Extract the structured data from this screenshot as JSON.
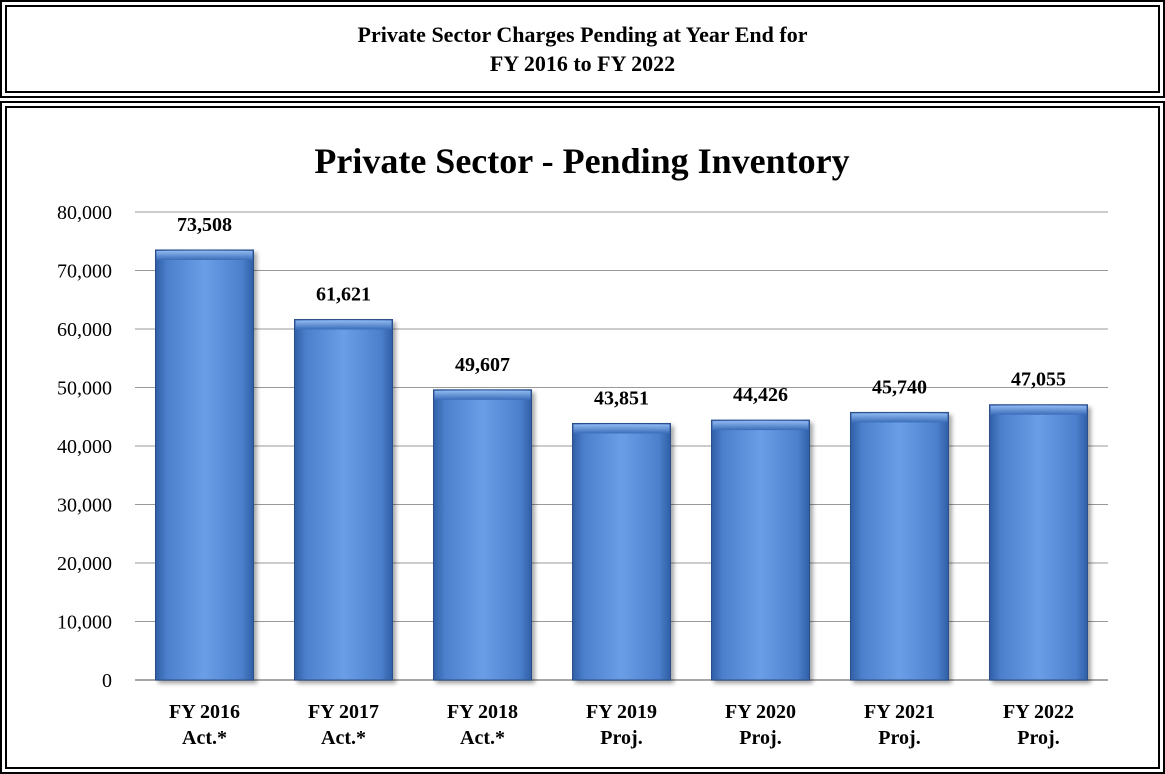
{
  "header": {
    "line1": "Private Sector Charges Pending at Year End for",
    "line2": "FY 2016 to FY 2022"
  },
  "chart_data": {
    "type": "bar",
    "title": "Private Sector - Pending Inventory",
    "categories": [
      [
        "FY 2016",
        "Act.*"
      ],
      [
        "FY 2017",
        "Act.*"
      ],
      [
        "FY 2018",
        "Act.*"
      ],
      [
        "FY 2019",
        "Proj."
      ],
      [
        "FY 2020",
        "Proj."
      ],
      [
        "FY 2021",
        "Proj."
      ],
      [
        "FY 2022",
        "Proj."
      ]
    ],
    "values": [
      73508,
      61621,
      49607,
      43851,
      44426,
      45740,
      47055
    ],
    "value_labels": [
      "73,508",
      "61,621",
      "49,607",
      "43,851",
      "44,426",
      "45,740",
      "47,055"
    ],
    "ylim": [
      0,
      80000
    ],
    "yticks": [
      0,
      10000,
      20000,
      30000,
      40000,
      50000,
      60000,
      70000,
      80000
    ],
    "ytick_labels": [
      "0",
      "10,000",
      "20,000",
      "30,000",
      "40,000",
      "50,000",
      "60,000",
      "70,000",
      "80,000"
    ],
    "grid": true,
    "legend": "none",
    "bar_color": "#5b8fd8"
  }
}
